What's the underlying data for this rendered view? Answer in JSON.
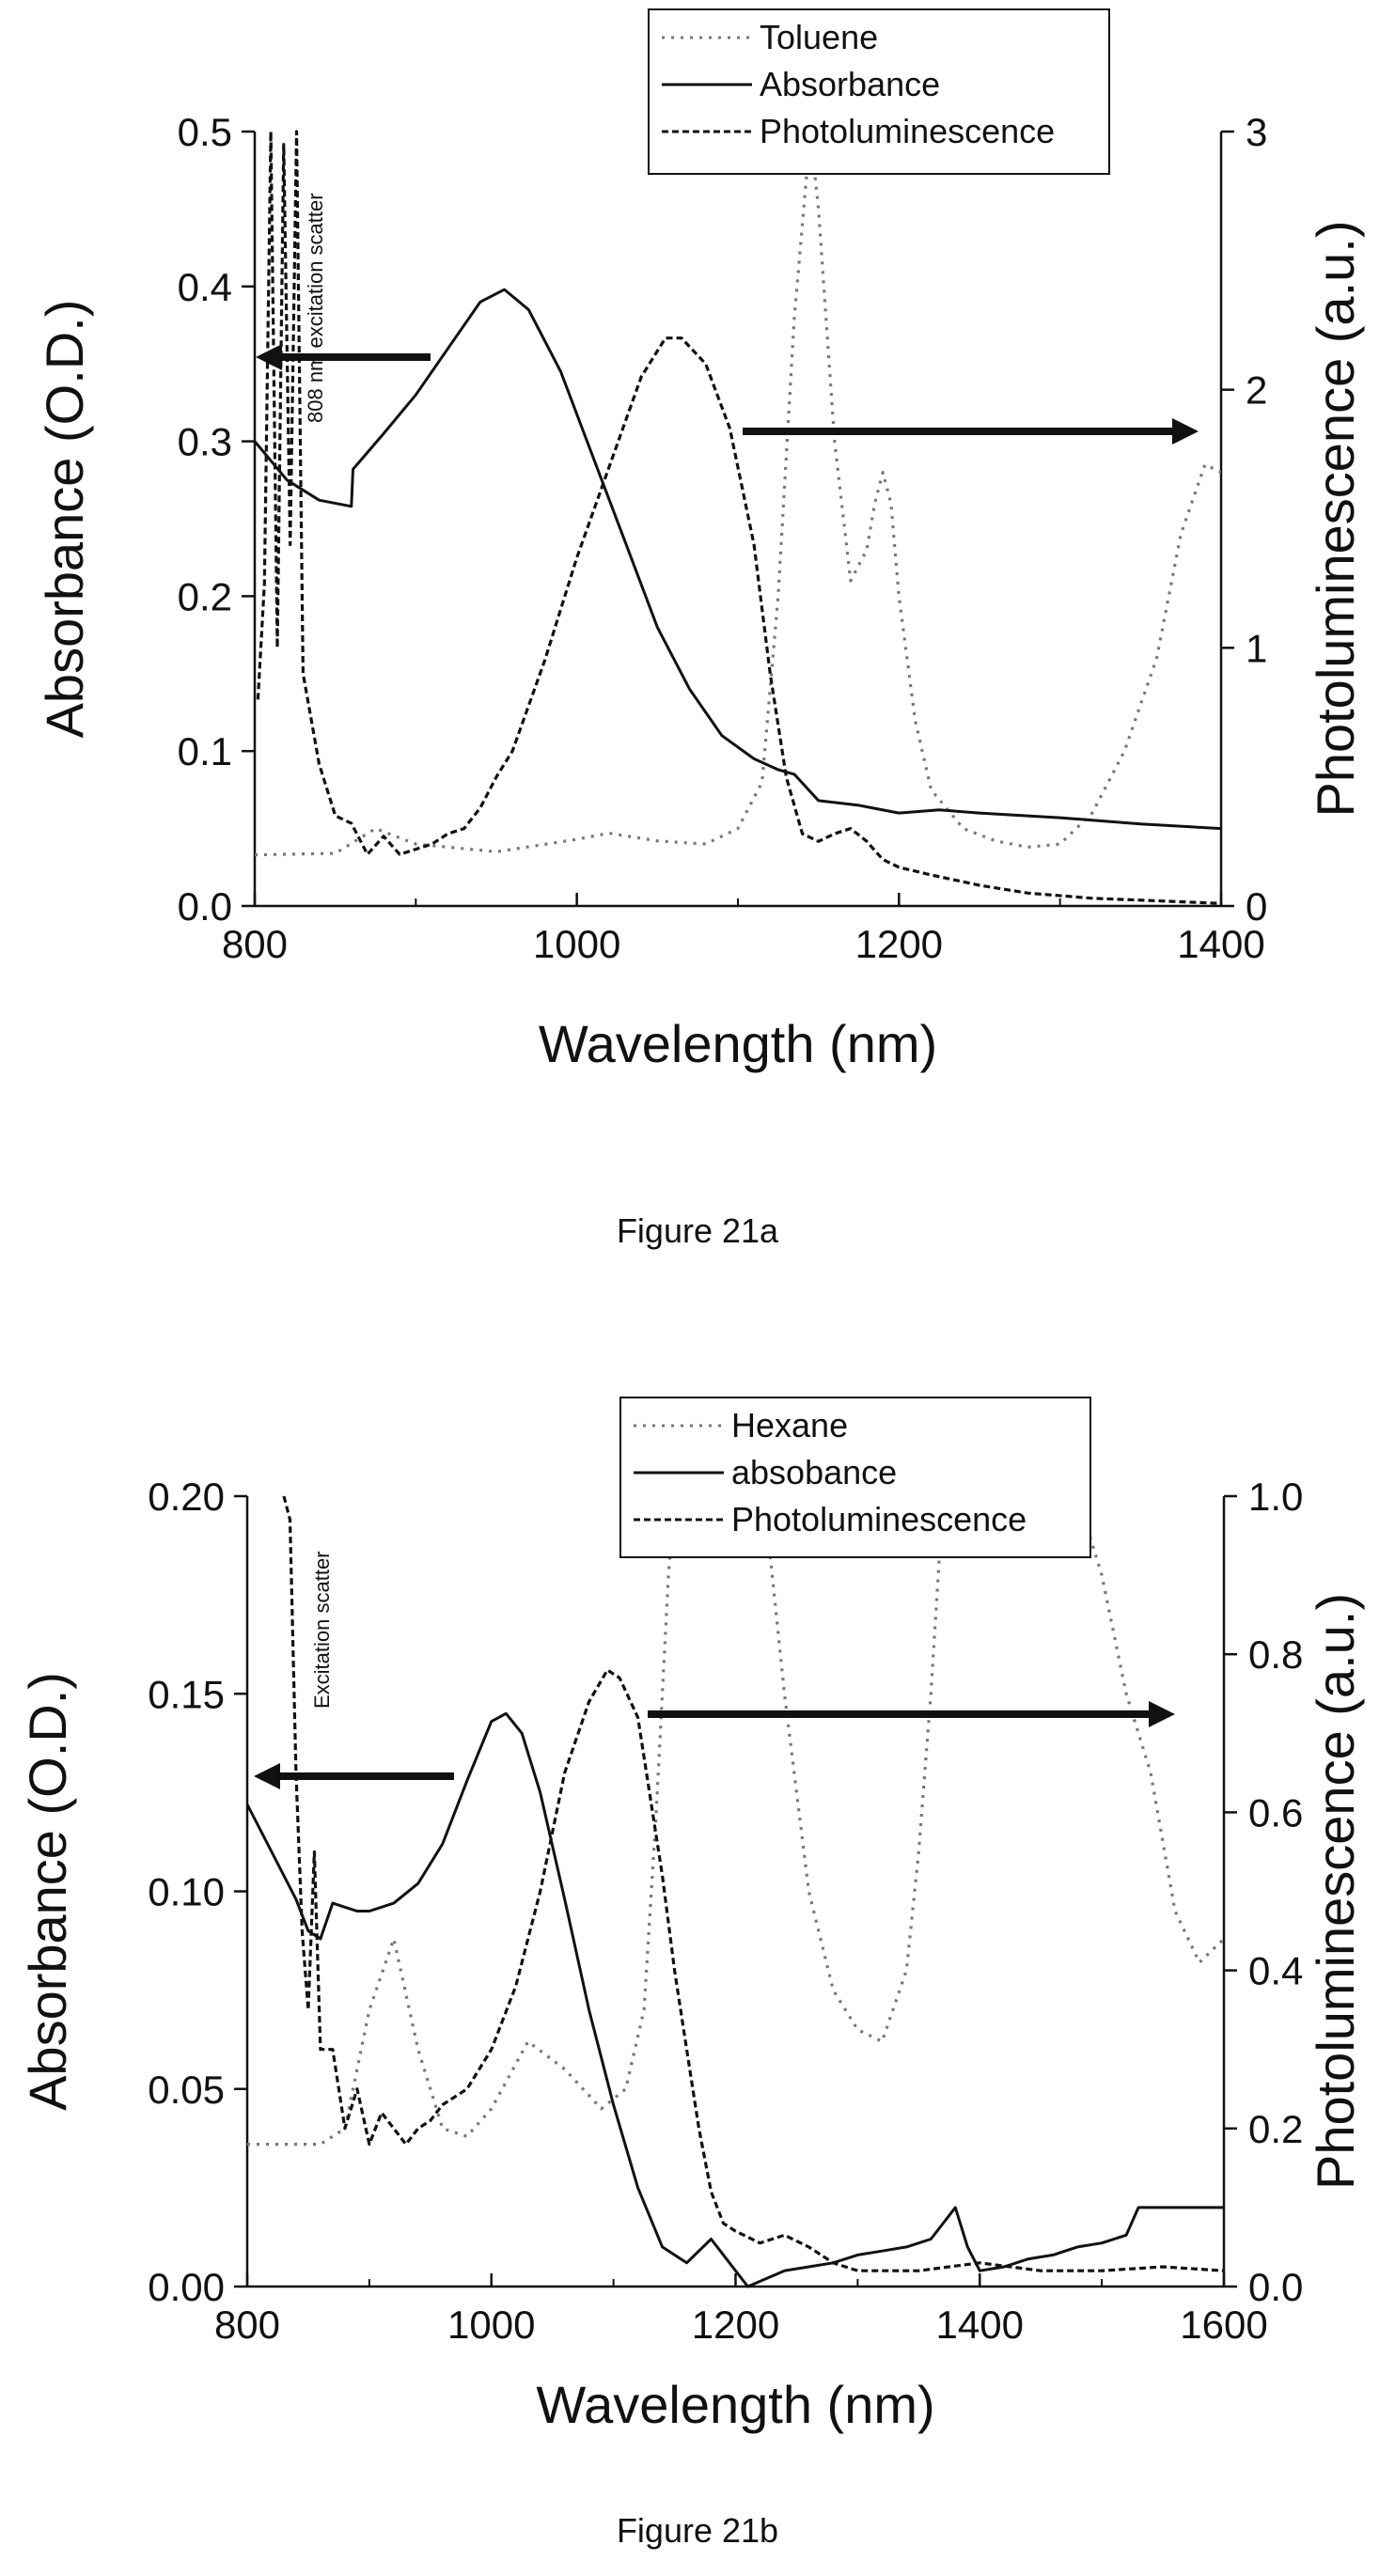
{
  "chart_data": [
    {
      "type": "line",
      "caption": "Figure 21a",
      "xlabel": "Wavelength (nm)",
      "ylabel": "Absorbance (O.D.)",
      "y2label": "Photoluminescence (a.u.)",
      "xlim": [
        800,
        1400
      ],
      "ylim": [
        0,
        0.5
      ],
      "y2lim": [
        0,
        3
      ],
      "xticks": [
        "800",
        "1000",
        "1200",
        "1400"
      ],
      "yticks": [
        "0.0",
        "0.1",
        "0.2",
        "0.3",
        "0.4",
        "0.5"
      ],
      "y2ticks": [
        "0",
        "1",
        "2",
        "3"
      ],
      "legend_position": "top-right",
      "annotation": "808 nm excitation scatter",
      "series": [
        {
          "name": "Toluene",
          "style": "dotted",
          "axis": "left",
          "x": [
            800,
            850,
            875,
            900,
            950,
            1000,
            1020,
            1050,
            1080,
            1100,
            1115,
            1125,
            1135,
            1145,
            1150,
            1160,
            1170,
            1180,
            1185,
            1190,
            1195,
            1200,
            1210,
            1220,
            1240,
            1260,
            1280,
            1300,
            1320,
            1340,
            1360,
            1375,
            1390,
            1400
          ],
          "y": [
            0.033,
            0.034,
            0.05,
            0.04,
            0.035,
            0.043,
            0.047,
            0.042,
            0.04,
            0.05,
            0.08,
            0.2,
            0.38,
            0.5,
            0.45,
            0.3,
            0.21,
            0.23,
            0.26,
            0.28,
            0.26,
            0.2,
            0.12,
            0.075,
            0.05,
            0.042,
            0.038,
            0.04,
            0.06,
            0.1,
            0.16,
            0.24,
            0.285,
            0.28
          ]
        },
        {
          "name": "Absorbance",
          "style": "solid",
          "axis": "left",
          "x": [
            800,
            820,
            840,
            860,
            861,
            880,
            900,
            920,
            940,
            955,
            970,
            990,
            1010,
            1030,
            1050,
            1070,
            1090,
            1110,
            1125,
            1135,
            1150,
            1175,
            1200,
            1225,
            1250,
            1300,
            1350,
            1400
          ],
          "y": [
            0.3,
            0.275,
            0.262,
            0.258,
            0.282,
            0.305,
            0.33,
            0.36,
            0.39,
            0.398,
            0.385,
            0.345,
            0.29,
            0.235,
            0.18,
            0.14,
            0.11,
            0.095,
            0.088,
            0.085,
            0.068,
            0.065,
            0.06,
            0.062,
            0.06,
            0.057,
            0.053,
            0.05
          ]
        },
        {
          "name": "Photoluminescence",
          "style": "dashed",
          "axis": "right",
          "x": [
            802,
            806,
            810,
            814,
            818,
            822,
            826,
            830,
            840,
            850,
            860,
            870,
            880,
            890,
            900,
            910,
            920,
            930,
            940,
            950,
            960,
            980,
            1000,
            1020,
            1040,
            1055,
            1065,
            1080,
            1095,
            1110,
            1120,
            1130,
            1140,
            1150,
            1160,
            1170,
            1180,
            1190,
            1200,
            1220,
            1250,
            1280,
            1320,
            1360,
            1400
          ],
          "y": [
            0.8,
            1.25,
            3.0,
            1.0,
            2.95,
            1.4,
            3.0,
            0.9,
            0.55,
            0.35,
            0.32,
            0.2,
            0.27,
            0.2,
            0.22,
            0.24,
            0.28,
            0.3,
            0.38,
            0.5,
            0.6,
            0.95,
            1.35,
            1.7,
            2.05,
            2.2,
            2.2,
            2.1,
            1.85,
            1.4,
            0.9,
            0.5,
            0.28,
            0.25,
            0.28,
            0.3,
            0.25,
            0.18,
            0.15,
            0.12,
            0.08,
            0.05,
            0.03,
            0.02,
            0.01
          ]
        }
      ]
    },
    {
      "type": "line",
      "caption": "Figure 21b",
      "xlabel": "Wavelength (nm)",
      "ylabel": "Absorbance (O.D.)",
      "y2label": "Photoluminescence (a.u.)",
      "xlim": [
        800,
        1600
      ],
      "ylim": [
        0,
        0.2
      ],
      "y2lim": [
        0,
        1.0
      ],
      "xticks": [
        "800",
        "1000",
        "1200",
        "1400",
        "1600"
      ],
      "yticks": [
        "0.00",
        "0.05",
        "0.10",
        "0.15",
        "0.20"
      ],
      "y2ticks": [
        "0.0",
        "0.2",
        "0.4",
        "0.6",
        "0.8",
        "1.0"
      ],
      "legend_position": "top-right",
      "annotation": "Excitation scatter",
      "series": [
        {
          "name": "Hexane",
          "style": "dotted",
          "axis": "left",
          "x": [
            800,
            860,
            880,
            900,
            920,
            940,
            960,
            980,
            1000,
            1030,
            1060,
            1090,
            1110,
            1125,
            1135,
            1145,
            1150,
            1160,
            1180,
            1200,
            1215,
            1225,
            1240,
            1260,
            1280,
            1300,
            1320,
            1340,
            1350,
            1360,
            1370,
            1380,
            1400,
            1420,
            1440,
            1460,
            1480,
            1500,
            1520,
            1540,
            1560,
            1580,
            1600
          ],
          "y": [
            0.036,
            0.036,
            0.04,
            0.07,
            0.088,
            0.06,
            0.04,
            0.038,
            0.045,
            0.062,
            0.055,
            0.045,
            0.05,
            0.07,
            0.12,
            0.18,
            0.2,
            0.2,
            0.2,
            0.2,
            0.2,
            0.195,
            0.15,
            0.1,
            0.075,
            0.065,
            0.062,
            0.08,
            0.11,
            0.15,
            0.2,
            0.2,
            0.2,
            0.2,
            0.2,
            0.2,
            0.2,
            0.18,
            0.15,
            0.13,
            0.095,
            0.082,
            0.088
          ]
        },
        {
          "name": "absobance",
          "style": "solid",
          "axis": "left",
          "x": [
            800,
            820,
            840,
            850,
            860,
            870,
            880,
            890,
            900,
            920,
            940,
            960,
            980,
            1000,
            1012,
            1025,
            1040,
            1060,
            1080,
            1100,
            1120,
            1140,
            1160,
            1180,
            1200,
            1210,
            1240,
            1260,
            1280,
            1300,
            1320,
            1340,
            1360,
            1380,
            1390,
            1400,
            1420,
            1440,
            1460,
            1480,
            1500,
            1520,
            1530,
            1560,
            1600
          ],
          "y": [
            0.122,
            0.11,
            0.098,
            0.09,
            0.088,
            0.097,
            0.096,
            0.095,
            0.095,
            0.097,
            0.102,
            0.112,
            0.128,
            0.143,
            0.145,
            0.14,
            0.125,
            0.098,
            0.07,
            0.046,
            0.025,
            0.01,
            0.006,
            0.012,
            0.004,
            0.0,
            0.004,
            0.005,
            0.006,
            0.008,
            0.009,
            0.01,
            0.012,
            0.02,
            0.01,
            0.004,
            0.005,
            0.007,
            0.008,
            0.01,
            0.011,
            0.013,
            0.02,
            0.02,
            0.02
          ]
        },
        {
          "name": "Photoluminescence",
          "style": "dashed",
          "axis": "right",
          "x": [
            830,
            835,
            840,
            845,
            850,
            855,
            860,
            870,
            880,
            890,
            900,
            910,
            920,
            930,
            940,
            950,
            960,
            980,
            1000,
            1020,
            1040,
            1060,
            1080,
            1095,
            1105,
            1120,
            1130,
            1140,
            1150,
            1160,
            1170,
            1180,
            1190,
            1200,
            1220,
            1240,
            1260,
            1280,
            1300,
            1350,
            1400,
            1450,
            1500,
            1550,
            1600
          ],
          "y": [
            1.0,
            0.97,
            0.65,
            0.45,
            0.35,
            0.55,
            0.3,
            0.3,
            0.2,
            0.25,
            0.18,
            0.22,
            0.2,
            0.18,
            0.2,
            0.21,
            0.23,
            0.25,
            0.3,
            0.38,
            0.5,
            0.65,
            0.74,
            0.78,
            0.77,
            0.72,
            0.62,
            0.52,
            0.4,
            0.3,
            0.2,
            0.12,
            0.08,
            0.07,
            0.055,
            0.065,
            0.05,
            0.03,
            0.02,
            0.02,
            0.03,
            0.02,
            0.02,
            0.025,
            0.02
          ]
        }
      ]
    }
  ]
}
